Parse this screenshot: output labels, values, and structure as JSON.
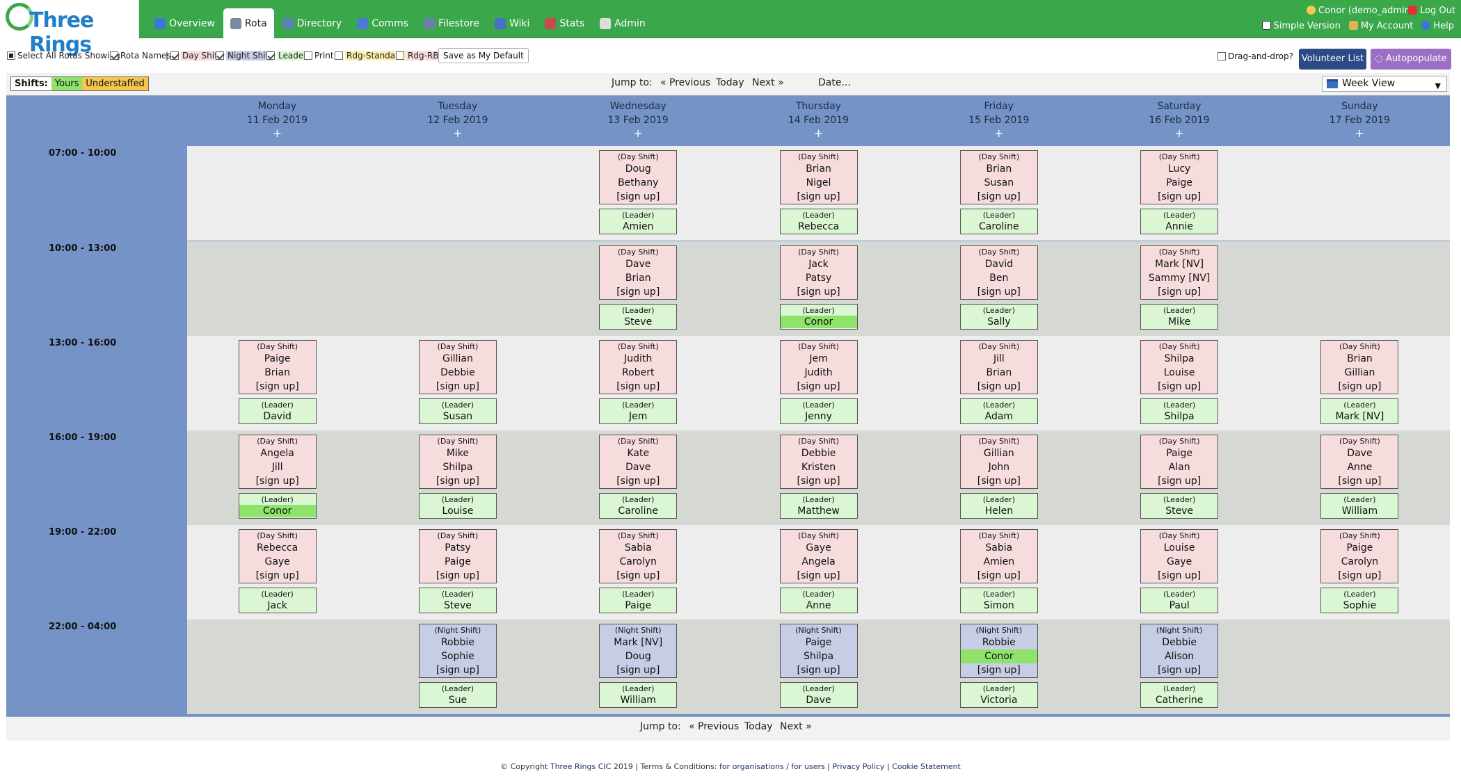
{
  "app": {
    "name": "Three Rings"
  },
  "nav": [
    {
      "label": "Overview",
      "icon": "feather-icon"
    },
    {
      "label": "Rota",
      "icon": "calendar-icon",
      "active": true
    },
    {
      "label": "Directory",
      "icon": "book-icon"
    },
    {
      "label": "Comms",
      "icon": "people-icon"
    },
    {
      "label": "Filestore",
      "icon": "folder-icon"
    },
    {
      "label": "Wiki",
      "icon": "globe-icon"
    },
    {
      "label": "Stats",
      "icon": "chart-icon"
    },
    {
      "label": "Admin",
      "icon": "tools-icon"
    }
  ],
  "user": {
    "name": "Conor (demo_admin)",
    "logout": "Log Out",
    "simple_version": "Simple Version",
    "my_account": "My Account",
    "help": "Help"
  },
  "filters": {
    "select_all": "Select All Rotas Showing:",
    "rota_names": "Rota Names",
    "separator": "|",
    "day_shift": "Day Shift",
    "night_shift": "Night Shift",
    "leader": "Leader",
    "print": "Print",
    "rdg_standard": "Rdg-Standard",
    "rdg_rbh": "Rdg-RBH",
    "save_default": "Save as My Default",
    "drag_drop": "Drag-and-drop?",
    "volunteer_list": "Volunteer List",
    "autopopulate": "Autopopulate"
  },
  "legend": {
    "label": "Shifts:",
    "yours": "Yours",
    "understaffed": "Understaffed"
  },
  "jump": {
    "label": "Jump to:",
    "previous": "« Previous",
    "today": "Today",
    "next": "Next »",
    "date": "Date..."
  },
  "view": {
    "selected": "Week View"
  },
  "days": [
    {
      "name": "Monday",
      "date": "11 Feb 2019",
      "plus": "+"
    },
    {
      "name": "Tuesday",
      "date": "12 Feb 2019",
      "plus": "+"
    },
    {
      "name": "Wednesday",
      "date": "13 Feb 2019",
      "plus": "+"
    },
    {
      "name": "Thursday",
      "date": "14 Feb 2019",
      "plus": "+"
    },
    {
      "name": "Friday",
      "date": "15 Feb 2019",
      "plus": "+"
    },
    {
      "name": "Saturday",
      "date": "16 Feb 2019",
      "plus": "+"
    },
    {
      "name": "Sunday",
      "date": "17 Feb 2019",
      "plus": "+"
    }
  ],
  "labels": {
    "day_shift": "(Day Shift)",
    "night_shift": "(Night Shift)",
    "leader": "(Leader)",
    "sign_up": "[sign up]"
  },
  "times": [
    {
      "time": "07:00 - 10:00",
      "cells": [
        null,
        null,
        {
          "type": "day",
          "names": [
            "Doug",
            "Bethany"
          ],
          "leader": "Amien"
        },
        {
          "type": "day",
          "names": [
            "Brian",
            "Nigel"
          ],
          "leader": "Rebecca"
        },
        {
          "type": "day",
          "names": [
            "Brian",
            "Susan"
          ],
          "leader": "Caroline"
        },
        {
          "type": "day",
          "names": [
            "Lucy",
            "Paige"
          ],
          "leader": "Annie"
        },
        null
      ]
    },
    {
      "time": "10:00 - 13:00",
      "cells": [
        null,
        null,
        {
          "type": "day",
          "names": [
            "Dave",
            "Brian"
          ],
          "leader": "Steve"
        },
        {
          "type": "day",
          "names": [
            "Jack",
            "Patsy"
          ],
          "leader": "Conor",
          "leader_me": true
        },
        {
          "type": "day",
          "names": [
            "David",
            "Ben"
          ],
          "leader": "Sally"
        },
        {
          "type": "day",
          "names": [
            "Mark [NV]",
            "Sammy [NV]"
          ],
          "leader": "Mike"
        },
        null
      ]
    },
    {
      "time": "13:00 - 16:00",
      "cells": [
        {
          "type": "day",
          "names": [
            "Paige",
            "Brian"
          ],
          "leader": "David"
        },
        {
          "type": "day",
          "names": [
            "Gillian",
            "Debbie"
          ],
          "leader": "Susan"
        },
        {
          "type": "day",
          "names": [
            "Judith",
            "Robert"
          ],
          "leader": "Jem"
        },
        {
          "type": "day",
          "names": [
            "Jem",
            "Judith"
          ],
          "leader": "Jenny"
        },
        {
          "type": "day",
          "names": [
            "Jill",
            "Brian"
          ],
          "leader": "Adam"
        },
        {
          "type": "day",
          "names": [
            "Shilpa",
            "Louise"
          ],
          "leader": "Shilpa"
        },
        {
          "type": "day",
          "names": [
            "Brian",
            "Gillian"
          ],
          "leader": "Mark [NV]"
        }
      ]
    },
    {
      "time": "16:00 - 19:00",
      "cells": [
        {
          "type": "day",
          "names": [
            "Angela",
            "Jill"
          ],
          "leader": "Conor",
          "leader_me": true
        },
        {
          "type": "day",
          "names": [
            "Mike",
            "Shilpa"
          ],
          "leader": "Louise"
        },
        {
          "type": "day",
          "names": [
            "Kate",
            "Dave"
          ],
          "leader": "Caroline"
        },
        {
          "type": "day",
          "names": [
            "Debbie",
            "Kristen"
          ],
          "leader": "Matthew"
        },
        {
          "type": "day",
          "names": [
            "Gillian",
            "John"
          ],
          "leader": "Helen"
        },
        {
          "type": "day",
          "names": [
            "Paige",
            "Alan"
          ],
          "leader": "Steve"
        },
        {
          "type": "day",
          "names": [
            "Dave",
            "Anne"
          ],
          "leader": "William"
        }
      ]
    },
    {
      "time": "19:00 - 22:00",
      "cells": [
        {
          "type": "day",
          "names": [
            "Rebecca",
            "Gaye"
          ],
          "leader": "Jack"
        },
        {
          "type": "day",
          "names": [
            "Patsy",
            "Paige"
          ],
          "leader": "Steve"
        },
        {
          "type": "day",
          "names": [
            "Sabia",
            "Carolyn"
          ],
          "leader": "Paige"
        },
        {
          "type": "day",
          "names": [
            "Gaye",
            "Angela"
          ],
          "leader": "Anne"
        },
        {
          "type": "day",
          "names": [
            "Sabia",
            "Amien"
          ],
          "leader": "Simon"
        },
        {
          "type": "day",
          "names": [
            "Louise",
            "Gaye"
          ],
          "leader": "Paul"
        },
        {
          "type": "day",
          "names": [
            "Paige",
            "Carolyn"
          ],
          "leader": "Sophie"
        }
      ]
    },
    {
      "time": "22:00 - 04:00",
      "cells": [
        null,
        {
          "type": "night",
          "names": [
            "Robbie",
            "Sophie"
          ],
          "leader": "Sue"
        },
        {
          "type": "night",
          "names": [
            "Mark [NV]",
            "Doug"
          ],
          "leader": "William"
        },
        {
          "type": "night",
          "names": [
            "Paige",
            "Shilpa"
          ],
          "leader": "Dave"
        },
        {
          "type": "night",
          "names": [
            "Robbie",
            "Conor"
          ],
          "me_index": 1,
          "leader": "Victoria"
        },
        {
          "type": "night",
          "names": [
            "Debbie",
            "Alison"
          ],
          "leader": "Catherine"
        },
        null
      ]
    }
  ],
  "footer": {
    "copyright": "© Copyright",
    "org": "Three Rings CIC",
    "year_terms": "2019 | Terms & Conditions:",
    "for_orgs": "for organisations",
    "slash": "/",
    "for_users": "for users",
    "bar1": "|",
    "privacy": "Privacy Policy",
    "bar2": "|",
    "cookie": "Cookie Statement"
  }
}
